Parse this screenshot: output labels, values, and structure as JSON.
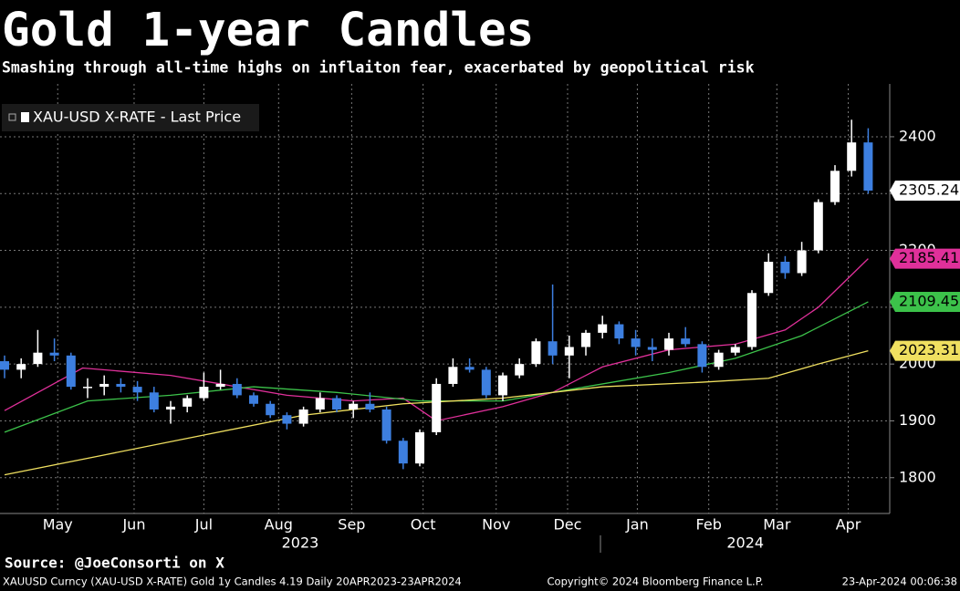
{
  "chart_data": {
    "type": "candlestick",
    "title": "Gold 1-year Candles",
    "subtitle": "Smashing through all-time highs on inflaiton fear, exacerbated by geopolitical risk",
    "legend": "XAU-USD X-RATE - Last Price",
    "source": "Source: @JoeConsorti on X",
    "footer_left": "XAUUSD Curncy (XAU-USD X-RATE) Gold 1y Candles 4.19  Daily 20APR2023-23APR2024",
    "footer_center": "Copyright© 2024 Bloomberg Finance L.P.",
    "footer_right": "23-Apr-2024 00:06:38",
    "categories": [
      null,
      null,
      null,
      null,
      null,
      null,
      null,
      null,
      null,
      null,
      null,
      null,
      null,
      null,
      null,
      null,
      null,
      null,
      null,
      null,
      null,
      null,
      null,
      null,
      null,
      null,
      null,
      null,
      null,
      null,
      null,
      null,
      null,
      null,
      null,
      null,
      null,
      null,
      null,
      null,
      null,
      null,
      null,
      null,
      null,
      null,
      null,
      null,
      null,
      null,
      null,
      null,
      null
    ],
    "open": [
      2005,
      1990,
      2000,
      2020,
      2015,
      1960,
      1960,
      1965,
      1960,
      1950,
      1920,
      1925,
      1940,
      1960,
      1965,
      1945,
      1930,
      1910,
      1895,
      1920,
      1940,
      1920,
      1930,
      1920,
      1865,
      1825,
      1880,
      1965,
      1995,
      1990,
      1945,
      1980,
      2000,
      2040,
      2015,
      2030,
      2055,
      2070,
      2045,
      2030,
      2025,
      2045,
      2035,
      1995,
      2020,
      2030,
      2125,
      2180,
      2160,
      2200,
      2285,
      2340,
      2390
    ],
    "high": [
      2015,
      2010,
      2060,
      2045,
      2020,
      1975,
      1980,
      1975,
      1970,
      1960,
      1935,
      1945,
      1985,
      1990,
      1975,
      1950,
      1935,
      1915,
      1925,
      1950,
      1945,
      1935,
      1950,
      1925,
      1870,
      1885,
      1975,
      2010,
      2010,
      1995,
      1985,
      2010,
      2045,
      2140,
      2050,
      2060,
      2085,
      2075,
      2060,
      2045,
      2055,
      2065,
      2040,
      2025,
      2035,
      2130,
      2195,
      2190,
      2215,
      2290,
      2350,
      2430,
      2415
    ],
    "low": [
      1975,
      1975,
      1995,
      2005,
      1955,
      1940,
      1945,
      1950,
      1935,
      1915,
      1895,
      1915,
      1935,
      1955,
      1940,
      1925,
      1905,
      1885,
      1890,
      1915,
      1915,
      1905,
      1915,
      1860,
      1815,
      1820,
      1875,
      1960,
      1985,
      1940,
      1935,
      1975,
      1995,
      2000,
      1975,
      2015,
      2045,
      2035,
      2015,
      2005,
      2015,
      2030,
      1985,
      1990,
      2015,
      2025,
      2120,
      2150,
      2155,
      2195,
      2280,
      2330,
      2300
    ],
    "close": [
      1990,
      2000,
      2020,
      2015,
      1960,
      1960,
      1965,
      1960,
      1950,
      1920,
      1925,
      1940,
      1960,
      1965,
      1945,
      1930,
      1910,
      1895,
      1920,
      1940,
      1920,
      1930,
      1920,
      1865,
      1825,
      1880,
      1965,
      1995,
      1990,
      1945,
      1980,
      2000,
      2040,
      2015,
      2030,
      2055,
      2070,
      2045,
      2030,
      2025,
      2045,
      2035,
      1995,
      2020,
      2030,
      2125,
      2180,
      2160,
      2200,
      2285,
      2340,
      2390,
      2305.24
    ],
    "last_label": "2305.24",
    "up_color": "#ffffff",
    "down_color": "#3d7fe0",
    "series": [
      {
        "color": "#e0309a",
        "x": [
          0,
          4.7,
          10,
          13,
          17,
          21,
          24,
          26,
          30,
          33,
          36,
          40,
          44,
          47,
          49,
          52
        ],
        "values": [
          1918,
          1993,
          1980,
          1965,
          1945,
          1935,
          1940,
          1900,
          1925,
          1950,
          1995,
          2025,
          2035,
          2060,
          2100,
          2185.41
        ],
        "value_label": "2185.41"
      },
      {
        "color": "#3cc24a",
        "x": [
          0,
          5,
          10,
          15,
          20,
          25,
          30,
          35,
          40,
          44,
          48,
          52
        ],
        "values": [
          1880,
          1935,
          1945,
          1960,
          1950,
          1935,
          1935,
          1960,
          1985,
          2010,
          2050,
          2109.45
        ],
        "value_label": "2109.45"
      },
      {
        "color": "#f0e060",
        "x": [
          0,
          6,
          12,
          18,
          24,
          30,
          36,
          42,
          46,
          49,
          52
        ],
        "values": [
          1805,
          1840,
          1875,
          1910,
          1930,
          1940,
          1960,
          1968,
          1975,
          2000,
          2023.31
        ],
        "value_label": "2023.31"
      }
    ],
    "ylim": [
      1737,
      2493
    ],
    "yticks": [
      1800,
      1900,
      2000,
      2100,
      2200,
      2300,
      2400
    ],
    "grid": true,
    "xticks": [
      {
        "value": 3.2,
        "label": "May"
      },
      {
        "value": 7.8,
        "label": "Jun"
      },
      {
        "value": 12.0,
        "label": "Jul"
      },
      {
        "value": 16.5,
        "label": "Aug"
      },
      {
        "value": 20.9,
        "label": "Sep"
      },
      {
        "value": 25.2,
        "label": "Oct"
      },
      {
        "value": 29.6,
        "label": "Nov"
      },
      {
        "value": 33.9,
        "label": "Dec"
      },
      {
        "value": 38.1,
        "label": "Jan"
      },
      {
        "value": 42.4,
        "label": "Feb"
      },
      {
        "value": 46.5,
        "label": "Mar"
      },
      {
        "value": 50.8,
        "label": "Apr"
      }
    ],
    "year_ticks": [
      {
        "value": 17.8,
        "label": "2023"
      },
      {
        "value": 44.6,
        "label": "2024"
      }
    ]
  }
}
